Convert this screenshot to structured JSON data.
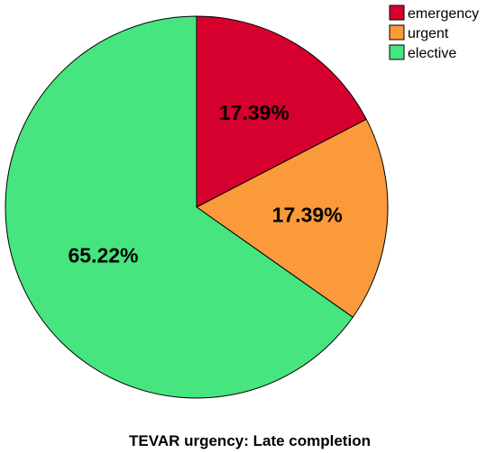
{
  "chart_data": {
    "type": "pie",
    "title": "TEVAR urgency: Late completion",
    "categories": [
      "emergency",
      "urgent",
      "elective"
    ],
    "values": [
      17.39,
      17.39,
      65.22
    ],
    "labels": [
      "17.39%",
      "17.39%",
      "65.22%"
    ],
    "colors": [
      "#d6002e",
      "#fa9a3a",
      "#47e57f"
    ],
    "start_angle_deg": 0,
    "direction": "clockwise",
    "legend_position": "top-right"
  }
}
